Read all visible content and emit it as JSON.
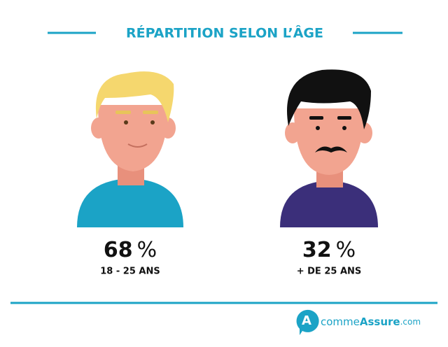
{
  "title": "RÉPARTITION SELON L’ÂGE",
  "groups": [
    {
      "value": 68,
      "unit": "%",
      "label": "18 - 25 ANS"
    },
    {
      "value": 32,
      "unit": "%",
      "label": "+ DE 25 ANS"
    }
  ],
  "logo": {
    "letter": "A",
    "comme": "comme",
    "assure": "Assure",
    "domain": ".com"
  }
}
